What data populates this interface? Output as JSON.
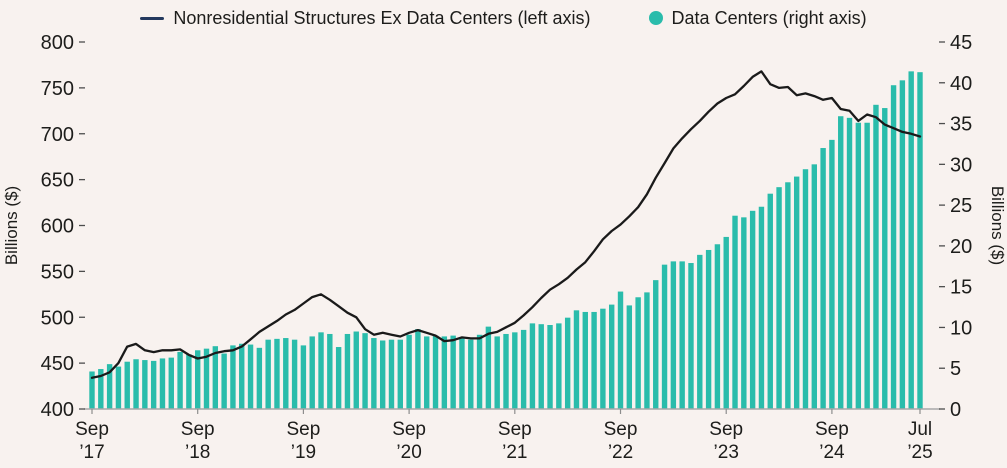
{
  "legend": [
    {
      "label": "Nonresidential Structures Ex Data Centers (left axis)",
      "marker": "line",
      "color": "#24395e"
    },
    {
      "label": "Data Centers (right axis)",
      "marker": "dot",
      "color": "#2abcab"
    }
  ],
  "left_axis": {
    "title": "Billions ($)",
    "ticks": [
      400,
      450,
      500,
      550,
      600,
      650,
      700,
      750,
      800
    ]
  },
  "right_axis": {
    "title": "Billions ($)",
    "ticks": [
      0,
      5,
      10,
      15,
      20,
      25,
      30,
      35,
      40,
      45
    ]
  },
  "x_axis": {
    "ticks": [
      {
        "month": "Sep",
        "year": "’17",
        "mi": 0
      },
      {
        "month": "Sep",
        "year": "’18",
        "mi": 12
      },
      {
        "month": "Sep",
        "year": "’19",
        "mi": 24
      },
      {
        "month": "Sep",
        "year": "’20",
        "mi": 36
      },
      {
        "month": "Sep",
        "year": "’21",
        "mi": 48
      },
      {
        "month": "Sep",
        "year": "’22",
        "mi": 60
      },
      {
        "month": "Sep",
        "year": "’23",
        "mi": 72
      },
      {
        "month": "Sep",
        "year": "’24",
        "mi": 84
      },
      {
        "month": "Jul",
        "year": "’25",
        "mi": 94
      }
    ]
  },
  "chart_data": {
    "type": "combo_bar_line",
    "title": "",
    "ylabel_left": "Billions ($)",
    "ylabel_right": "Billions ($)",
    "ylim_left": [
      400,
      800
    ],
    "ylim_right": [
      0,
      45
    ],
    "grid": false,
    "legend_position": "top-center",
    "categories": [
      "2017-09",
      "2017-10",
      "2017-11",
      "2017-12",
      "2018-01",
      "2018-02",
      "2018-03",
      "2018-04",
      "2018-05",
      "2018-06",
      "2018-07",
      "2018-08",
      "2018-09",
      "2018-10",
      "2018-11",
      "2018-12",
      "2019-01",
      "2019-02",
      "2019-03",
      "2019-04",
      "2019-05",
      "2019-06",
      "2019-07",
      "2019-08",
      "2019-09",
      "2019-10",
      "2019-11",
      "2019-12",
      "2020-01",
      "2020-02",
      "2020-03",
      "2020-04",
      "2020-05",
      "2020-06",
      "2020-07",
      "2020-08",
      "2020-09",
      "2020-10",
      "2020-11",
      "2020-12",
      "2021-01",
      "2021-02",
      "2021-03",
      "2021-04",
      "2021-05",
      "2021-06",
      "2021-07",
      "2021-08",
      "2021-09",
      "2021-10",
      "2021-11",
      "2021-12",
      "2022-01",
      "2022-02",
      "2022-03",
      "2022-04",
      "2022-05",
      "2022-06",
      "2022-07",
      "2022-08",
      "2022-09",
      "2022-10",
      "2022-11",
      "2022-12",
      "2023-01",
      "2023-02",
      "2023-03",
      "2023-04",
      "2023-05",
      "2023-06",
      "2023-07",
      "2023-08",
      "2023-09",
      "2023-10",
      "2023-11",
      "2023-12",
      "2024-01",
      "2024-02",
      "2024-03",
      "2024-04",
      "2024-05",
      "2024-06",
      "2024-07",
      "2024-08",
      "2024-09",
      "2024-10",
      "2024-11",
      "2024-12",
      "2025-01",
      "2025-02",
      "2025-03",
      "2025-04",
      "2025-05",
      "2025-06",
      "2025-07"
    ],
    "series": [
      {
        "name": "Nonresidential Structures Ex Data Centers",
        "type": "line",
        "axis": "left",
        "color": "#1a1a1a",
        "values": [
          434,
          436,
          440,
          450,
          468,
          471,
          464,
          462,
          464,
          464,
          465,
          459,
          455,
          457,
          461,
          463,
          464,
          468,
          476,
          484,
          490,
          496,
          503,
          508,
          515,
          522,
          525,
          519,
          512,
          505,
          500,
          487,
          481,
          483,
          481,
          479,
          483,
          486,
          483,
          480,
          474,
          475,
          478,
          477,
          477,
          482,
          484,
          489,
          494,
          502,
          511,
          521,
          530,
          536,
          543,
          552,
          560,
          572,
          585,
          594,
          601,
          610,
          620,
          634,
          652,
          668,
          684,
          695,
          705,
          714,
          724,
          733,
          739,
          743,
          752,
          762,
          768,
          754,
          750,
          751,
          742,
          744,
          741,
          737,
          739,
          727,
          725,
          714,
          721,
          718,
          710,
          706,
          702,
          700,
          697
        ]
      },
      {
        "name": "Data Centers",
        "type": "bar",
        "axis": "right",
        "color": "#2abcab",
        "values": [
          4.6,
          4.9,
          5.5,
          5.2,
          5.8,
          6.1,
          6.0,
          5.9,
          6.2,
          6.3,
          7.0,
          6.7,
          7.2,
          7.4,
          7.7,
          6.8,
          7.8,
          8.0,
          7.9,
          7.5,
          8.5,
          8.6,
          8.7,
          8.5,
          7.8,
          8.9,
          9.4,
          9.2,
          7.6,
          9.2,
          9.5,
          9.3,
          8.7,
          8.4,
          8.5,
          8.5,
          9.1,
          9.8,
          8.9,
          9.0,
          8.9,
          9.0,
          8.8,
          8.5,
          9.1,
          10.1,
          8.9,
          9.2,
          9.4,
          9.7,
          10.5,
          10.4,
          10.3,
          10.5,
          11.2,
          12.1,
          11.9,
          11.9,
          12.3,
          12.8,
          14.4,
          12.7,
          13.7,
          14.3,
          15.8,
          17.7,
          18.1,
          18.1,
          17.9,
          18.9,
          19.5,
          20.2,
          21.1,
          23.7,
          23.5,
          24.3,
          24.8,
          26.4,
          27.2,
          27.8,
          28.5,
          29.4,
          30.0,
          32.0,
          33.0,
          35.9,
          35.7,
          35.1,
          35.1,
          37.3,
          36.9,
          39.7,
          40.3,
          41.4,
          41.3
        ]
      }
    ]
  }
}
